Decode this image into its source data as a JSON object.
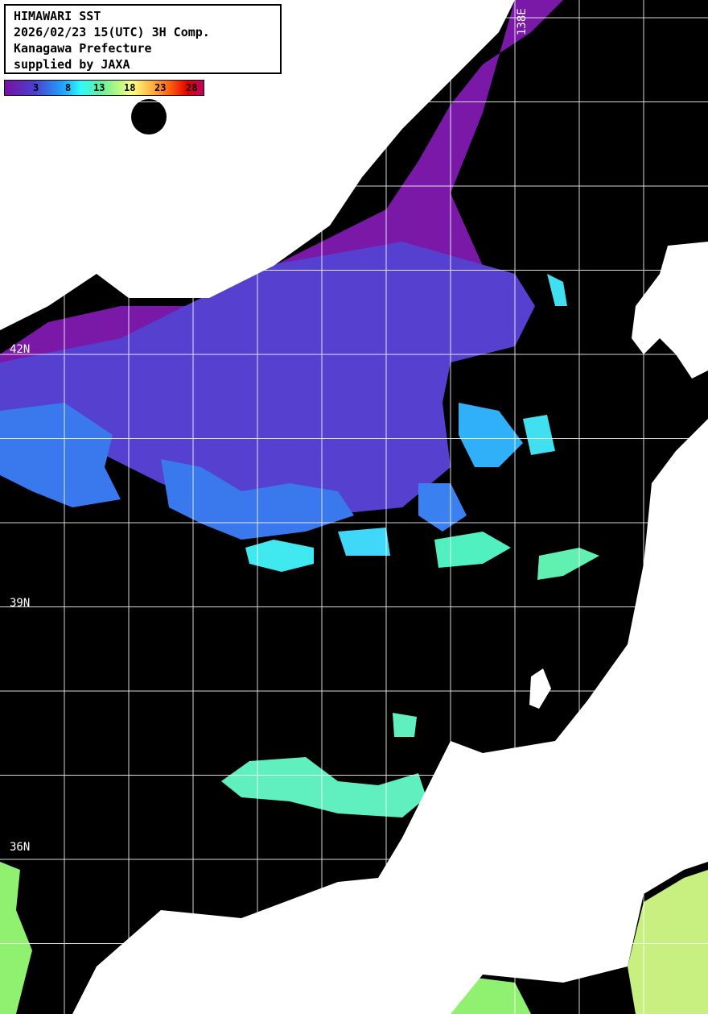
{
  "header": {
    "lines": [
      "HIMAWARI SST",
      "2026/02/23 15(UTC) 3H Comp.",
      "Kanagawa Prefecture",
      "supplied by JAXA"
    ]
  },
  "colorbar": {
    "labels": [
      "3",
      "8",
      "13",
      "18",
      "23",
      "28"
    ],
    "colors": [
      "#7a10a0",
      "#4a40d0",
      "#1ea8ff",
      "#30f8ff",
      "#60f0a0",
      "#c0f880",
      "#ffff80",
      "#ffb040",
      "#ff6010",
      "#e00000",
      "#c00060"
    ]
  },
  "map": {
    "lat_labels": [
      "42N",
      "39N",
      "36N"
    ],
    "lon_labels": [
      "138E"
    ],
    "colors": {
      "land": "#ffffff",
      "no_data": "#000000",
      "grid": "#ffffff"
    }
  }
}
